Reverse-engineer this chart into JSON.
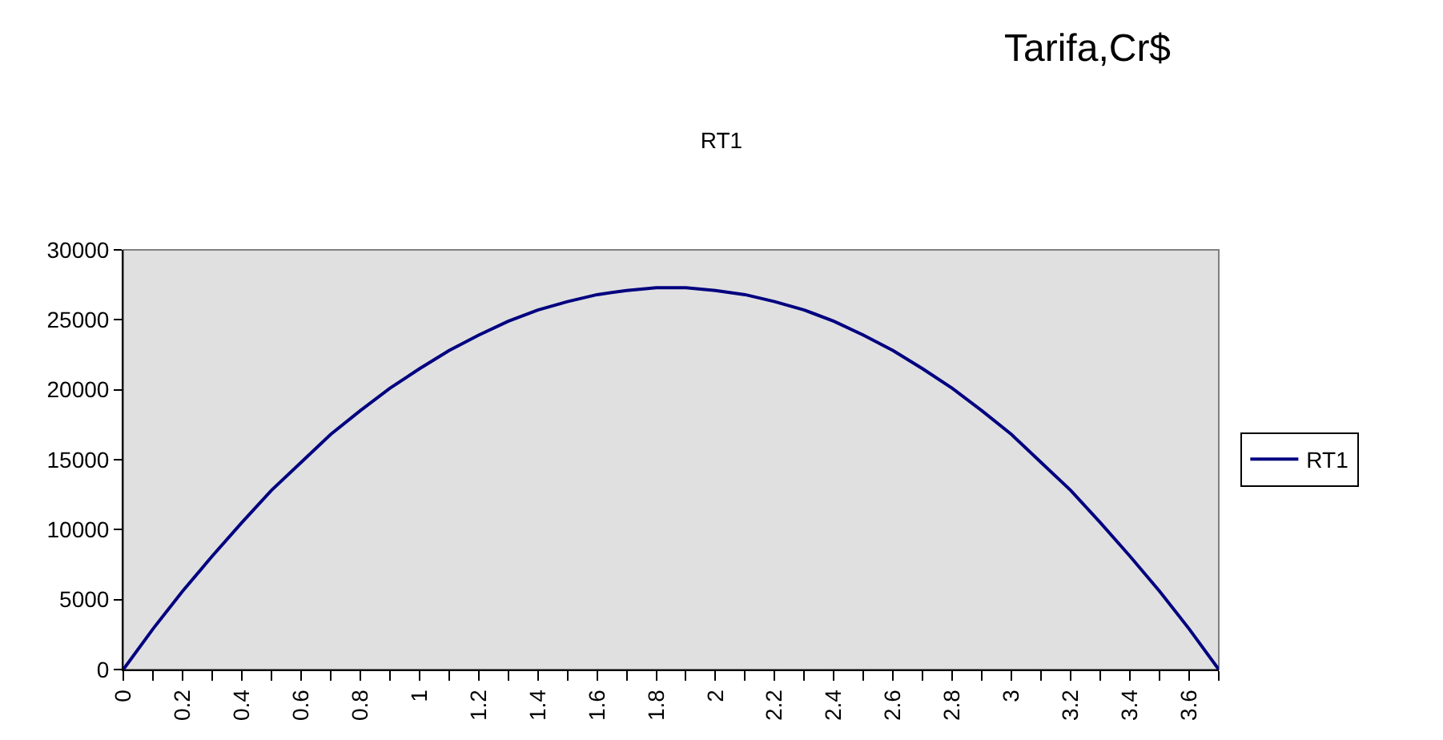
{
  "chart_data": {
    "type": "line",
    "title": "RT1",
    "annotations": [
      "Tarifa,Cr$"
    ],
    "x": [
      0,
      0.1,
      0.2,
      0.3,
      0.4,
      0.5,
      0.6,
      0.7,
      0.8,
      0.9,
      1,
      1.1,
      1.2,
      1.3,
      1.4,
      1.5,
      1.6,
      1.7,
      1.8,
      1.9,
      2,
      2.1,
      2.2,
      2.3,
      2.4,
      2.5,
      2.6,
      2.7,
      2.8,
      2.9,
      3,
      3.1,
      3.2,
      3.3,
      3.4,
      3.5,
      3.6,
      3.7
    ],
    "series": [
      {
        "name": "RT1",
        "color": "#000080",
        "values": [
          0,
          2900,
          5600,
          8100,
          10500,
          12800,
          14800,
          16800,
          18500,
          20100,
          21500,
          22800,
          23900,
          24900,
          25700,
          26300,
          26800,
          27100,
          27300,
          27300,
          27100,
          26800,
          26300,
          25700,
          24900,
          23900,
          22800,
          21500,
          20100,
          18500,
          16800,
          14800,
          12800,
          10500,
          8100,
          5600,
          2900,
          0
        ]
      }
    ],
    "xlim": [
      0,
      3.7
    ],
    "xticks": [
      0,
      {
        "value": 0.1,
        "label": null
      },
      0.2,
      {
        "value": 0.3,
        "label": null
      },
      0.4,
      {
        "value": 0.5,
        "label": null
      },
      0.6,
      {
        "value": 0.7,
        "label": null
      },
      0.8,
      {
        "value": 0.9,
        "label": null
      },
      1,
      {
        "value": 1.1,
        "label": null
      },
      1.2,
      {
        "value": 1.3,
        "label": null
      },
      1.4,
      {
        "value": 1.5,
        "label": null
      },
      1.6,
      {
        "value": 1.7,
        "label": null
      },
      1.8,
      {
        "value": 1.9,
        "label": null
      },
      2,
      {
        "value": 2.1,
        "label": null
      },
      2.2,
      {
        "value": 2.3,
        "label": null
      },
      2.4,
      {
        "value": 2.5,
        "label": null
      },
      2.6,
      {
        "value": 2.7,
        "label": null
      },
      2.8,
      {
        "value": 2.9,
        "label": null
      },
      3,
      {
        "value": 3.1,
        "label": null
      },
      3.2,
      {
        "value": 3.3,
        "label": null
      },
      3.4,
      {
        "value": 3.5,
        "label": null
      },
      3.6,
      {
        "value": 3.7,
        "label": null
      }
    ],
    "ylim": [
      0,
      30000
    ],
    "yticks": [
      0,
      5000,
      10000,
      15000,
      20000,
      25000,
      30000
    ],
    "grid": false,
    "legend": "right",
    "marker": "none",
    "line_style": "solid"
  }
}
